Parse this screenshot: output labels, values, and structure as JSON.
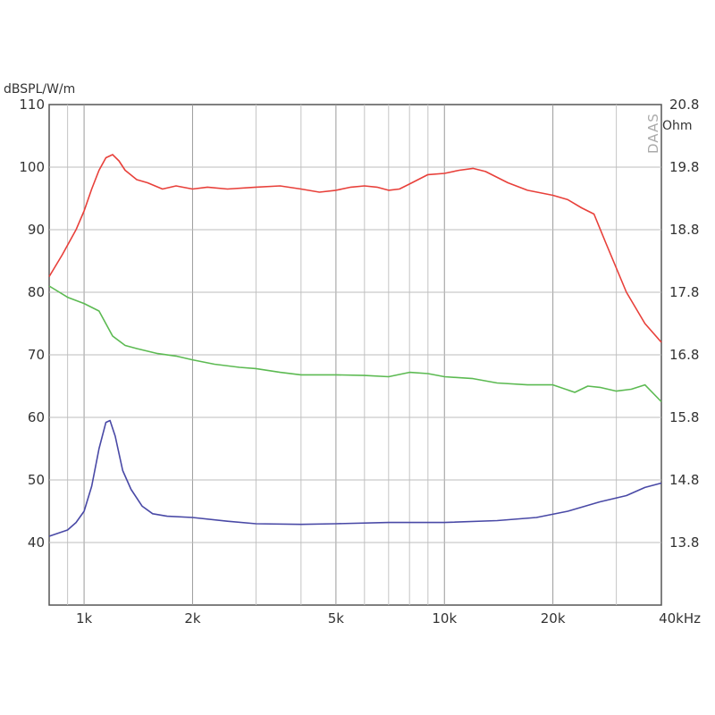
{
  "chart_data": {
    "type": "line",
    "xscale": "log",
    "xlim": [
      800,
      40000
    ],
    "x_ticks": [
      {
        "value": 1000,
        "label": "1k"
      },
      {
        "value": 2000,
        "label": "2k"
      },
      {
        "value": 5000,
        "label": "5k"
      },
      {
        "value": 10000,
        "label": "10k"
      },
      {
        "value": 20000,
        "label": "20k"
      },
      {
        "value": 40000,
        "label": "40kHz"
      }
    ],
    "ylim_left": [
      30,
      110
    ],
    "left_ticks": [
      110,
      100,
      90,
      80,
      70,
      60,
      50,
      40
    ],
    "ylabel_left": "dBSPL/W/m",
    "ylim_right": [
      12.8,
      20.8
    ],
    "right_ticks": [
      "20.8",
      "19.8",
      "18.8",
      "17.8",
      "16.8",
      "15.8",
      "14.8",
      "13.8"
    ],
    "ylabel_right": "Ohm",
    "brand": "DAAS",
    "grid": true,
    "series": [
      {
        "color": "#e8403a",
        "axis": "left",
        "points": [
          [
            800,
            82.5
          ],
          [
            870,
            86
          ],
          [
            950,
            90
          ],
          [
            1000,
            93
          ],
          [
            1050,
            96.5
          ],
          [
            1100,
            99.5
          ],
          [
            1150,
            101.5
          ],
          [
            1200,
            102
          ],
          [
            1250,
            101
          ],
          [
            1300,
            99.5
          ],
          [
            1400,
            98
          ],
          [
            1500,
            97.5
          ],
          [
            1650,
            96.5
          ],
          [
            1800,
            97
          ],
          [
            2000,
            96.5
          ],
          [
            2200,
            96.8
          ],
          [
            2500,
            96.5
          ],
          [
            3000,
            96.8
          ],
          [
            3500,
            97
          ],
          [
            4000,
            96.5
          ],
          [
            4500,
            96
          ],
          [
            5000,
            96.3
          ],
          [
            5500,
            96.8
          ],
          [
            6000,
            97
          ],
          [
            6500,
            96.8
          ],
          [
            7000,
            96.3
          ],
          [
            7500,
            96.5
          ],
          [
            8000,
            97.3
          ],
          [
            9000,
            98.8
          ],
          [
            10000,
            99
          ],
          [
            11000,
            99.5
          ],
          [
            12000,
            99.8
          ],
          [
            13000,
            99.3
          ],
          [
            15000,
            97.5
          ],
          [
            17000,
            96.3
          ],
          [
            20000,
            95.5
          ],
          [
            22000,
            94.8
          ],
          [
            24000,
            93.5
          ],
          [
            26000,
            92.5
          ],
          [
            28000,
            88
          ],
          [
            32000,
            80
          ],
          [
            36000,
            75
          ],
          [
            40000,
            72
          ]
        ]
      },
      {
        "color": "#5cba52",
        "axis": "right",
        "points": [
          [
            800,
            17.9
          ],
          [
            900,
            17.72
          ],
          [
            1000,
            17.62
          ],
          [
            1100,
            17.5
          ],
          [
            1200,
            17.1
          ],
          [
            1300,
            16.95
          ],
          [
            1400,
            16.9
          ],
          [
            1600,
            16.82
          ],
          [
            1800,
            16.78
          ],
          [
            2000,
            16.72
          ],
          [
            2300,
            16.65
          ],
          [
            2700,
            16.6
          ],
          [
            3000,
            16.58
          ],
          [
            3500,
            16.52
          ],
          [
            4000,
            16.48
          ],
          [
            5000,
            16.48
          ],
          [
            6000,
            16.47
          ],
          [
            7000,
            16.45
          ],
          [
            8000,
            16.52
          ],
          [
            9000,
            16.5
          ],
          [
            10000,
            16.45
          ],
          [
            12000,
            16.42
          ],
          [
            14000,
            16.35
          ],
          [
            17000,
            16.32
          ],
          [
            20000,
            16.32
          ],
          [
            23000,
            16.2
          ],
          [
            25000,
            16.3
          ],
          [
            27000,
            16.28
          ],
          [
            30000,
            16.22
          ],
          [
            33000,
            16.25
          ],
          [
            36000,
            16.32
          ],
          [
            40000,
            16.05
          ]
        ]
      },
      {
        "color": "#4949a6",
        "axis": "right",
        "points": [
          [
            800,
            13.9
          ],
          [
            900,
            14.0
          ],
          [
            950,
            14.12
          ],
          [
            1000,
            14.3
          ],
          [
            1050,
            14.7
          ],
          [
            1100,
            15.3
          ],
          [
            1150,
            15.72
          ],
          [
            1180,
            15.75
          ],
          [
            1220,
            15.5
          ],
          [
            1280,
            14.95
          ],
          [
            1350,
            14.65
          ],
          [
            1450,
            14.38
          ],
          [
            1550,
            14.26
          ],
          [
            1700,
            14.22
          ],
          [
            2000,
            14.2
          ],
          [
            2500,
            14.14
          ],
          [
            3000,
            14.1
          ],
          [
            4000,
            14.09
          ],
          [
            5000,
            14.1
          ],
          [
            7000,
            14.12
          ],
          [
            10000,
            14.12
          ],
          [
            14000,
            14.15
          ],
          [
            18000,
            14.2
          ],
          [
            22000,
            14.3
          ],
          [
            27000,
            14.45
          ],
          [
            32000,
            14.55
          ],
          [
            36000,
            14.68
          ],
          [
            40000,
            14.75
          ]
        ]
      }
    ]
  }
}
